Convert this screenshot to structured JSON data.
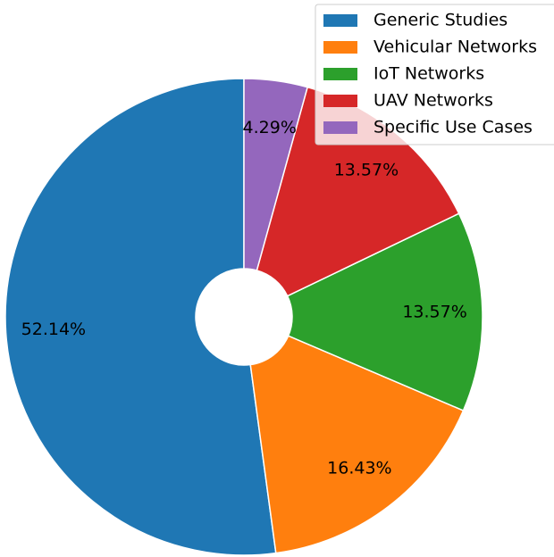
{
  "chart_data": {
    "type": "pie",
    "categories": [
      "Generic Studies",
      "Vehicular Networks",
      "IoT Networks",
      "UAV Networks",
      "Specific Use Cases"
    ],
    "values": [
      52.14,
      16.43,
      13.57,
      13.57,
      4.29
    ],
    "value_labels": [
      "52.14%",
      "16.43%",
      "13.57%",
      "13.57%",
      "4.29%"
    ],
    "colors": [
      "#1f77b4",
      "#ff7f0e",
      "#2ca02c",
      "#d62728",
      "#9467bd"
    ],
    "legend": "upper right"
  }
}
